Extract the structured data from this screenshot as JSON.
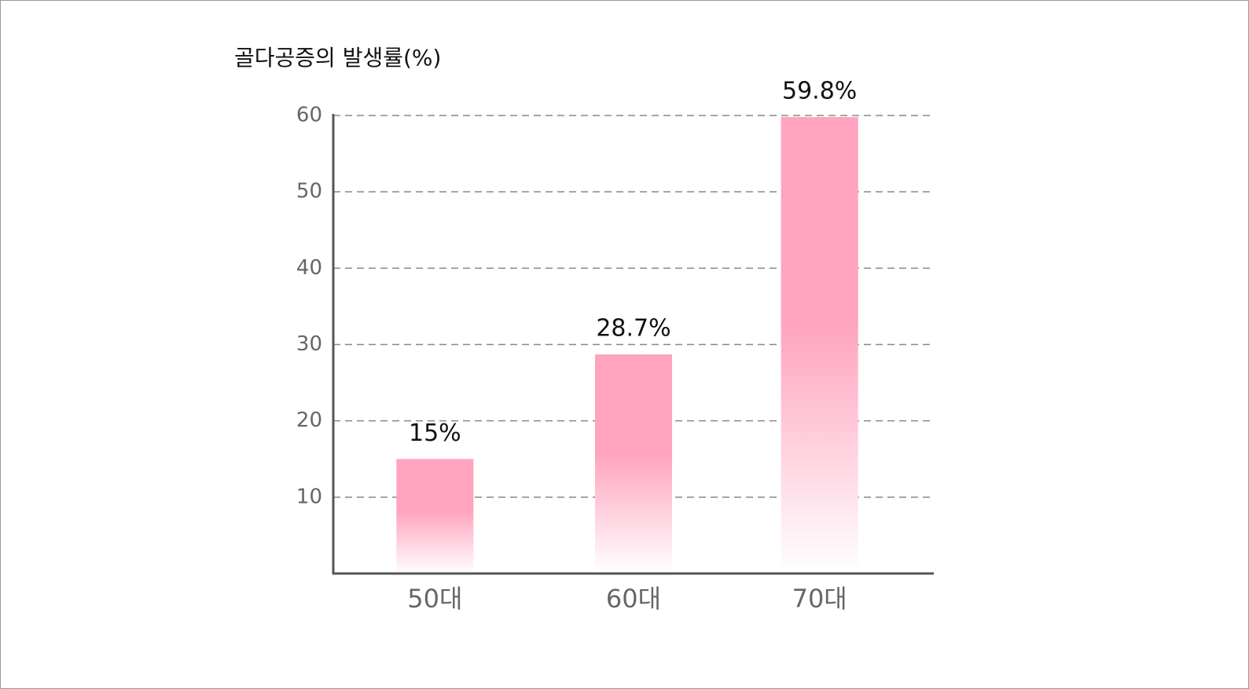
{
  "chart_data": {
    "type": "bar",
    "title": "골다공증의 발생률(%)",
    "categories": [
      "50대",
      "60대",
      "70대"
    ],
    "values": [
      15,
      28.7,
      59.8
    ],
    "value_labels": [
      "15%",
      "28.7%",
      "59.8%"
    ],
    "color": "#ffa3be",
    "ylim": [
      0,
      60
    ],
    "yticks": [
      10,
      20,
      30,
      40,
      50,
      60
    ],
    "grid": true
  }
}
